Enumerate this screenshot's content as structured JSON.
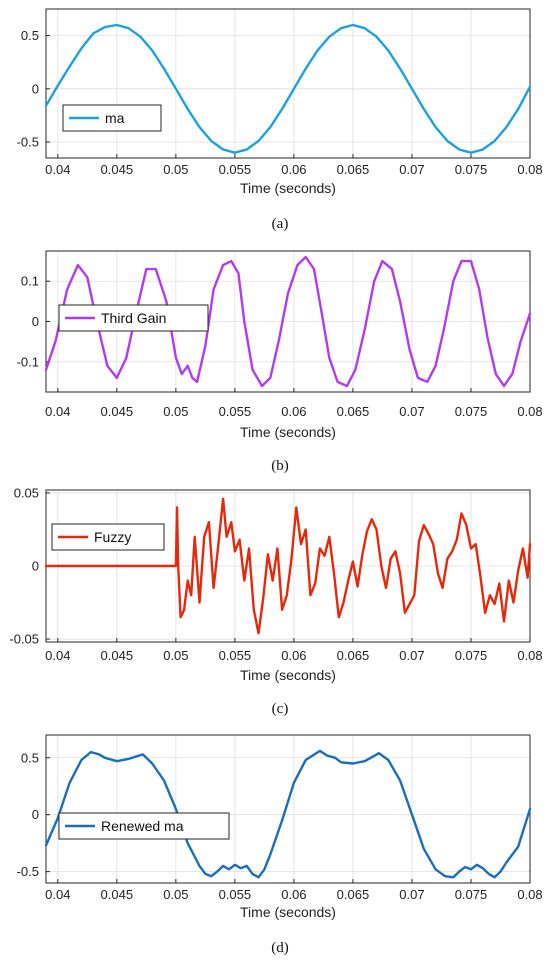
{
  "chart_data": [
    {
      "type": "line",
      "caption": "(a)",
      "xlabel": "Time (seconds)",
      "ylabel": "",
      "xlim": [
        0.039,
        0.08
      ],
      "ylim": [
        -0.65,
        0.75
      ],
      "xticks": [
        0.04,
        0.045,
        0.05,
        0.055,
        0.06,
        0.065,
        0.07,
        0.075,
        0.08
      ],
      "xtick_labels": [
        "0.04",
        "0.045",
        "0.05",
        "0.055",
        "0.06",
        "0.065",
        "0.07",
        "0.075",
        "0.08"
      ],
      "yticks": [
        0.5,
        0,
        -0.5
      ],
      "ytick_labels": [
        "0.5",
        "0",
        "-0.5"
      ],
      "grid": true,
      "legend_position": "left",
      "series": [
        {
          "name": "ma",
          "color": "#1ba1e2",
          "x": [
            0.039,
            0.04,
            0.041,
            0.042,
            0.043,
            0.044,
            0.045,
            0.046,
            0.047,
            0.048,
            0.049,
            0.05,
            0.051,
            0.052,
            0.053,
            0.054,
            0.055,
            0.056,
            0.057,
            0.058,
            0.059,
            0.06,
            0.061,
            0.062,
            0.063,
            0.064,
            0.065,
            0.066,
            0.067,
            0.068,
            0.069,
            0.07,
            0.071,
            0.072,
            0.073,
            0.074,
            0.075,
            0.076,
            0.077,
            0.078,
            0.079,
            0.08
          ],
          "y": [
            -0.16,
            0.03,
            0.21,
            0.38,
            0.52,
            0.58,
            0.6,
            0.57,
            0.49,
            0.36,
            0.19,
            0.0,
            -0.19,
            -0.36,
            -0.49,
            -0.57,
            -0.6,
            -0.57,
            -0.49,
            -0.36,
            -0.19,
            0.0,
            0.19,
            0.36,
            0.49,
            0.57,
            0.6,
            0.57,
            0.49,
            0.36,
            0.19,
            0.0,
            -0.19,
            -0.36,
            -0.49,
            -0.57,
            -0.6,
            -0.57,
            -0.49,
            -0.36,
            -0.19,
            0.02
          ]
        }
      ]
    },
    {
      "type": "line",
      "caption": "(b)",
      "xlabel": "Time (seconds)",
      "ylabel": "",
      "xlim": [
        0.039,
        0.08
      ],
      "ylim": [
        -0.175,
        0.175
      ],
      "xticks": [
        0.04,
        0.045,
        0.05,
        0.055,
        0.06,
        0.065,
        0.07,
        0.075,
        0.08
      ],
      "xtick_labels": [
        "0.04",
        "0.045",
        "0.05",
        "0.055",
        "0.06",
        "0.065",
        "0.07",
        "0.075",
        "0.08"
      ],
      "yticks": [
        0.1,
        0,
        -0.1
      ],
      "ytick_labels": [
        "0.1",
        "0",
        "-0.1"
      ],
      "grid": true,
      "legend_position": "left",
      "series": [
        {
          "name": "Third Gain",
          "color": "#b43af0",
          "x": [
            0.039,
            0.0398,
            0.0408,
            0.0417,
            0.0425,
            0.0433,
            0.0442,
            0.045,
            0.0458,
            0.0467,
            0.0475,
            0.0483,
            0.0492,
            0.05,
            0.0505,
            0.051,
            0.0514,
            0.0518,
            0.0525,
            0.0532,
            0.054,
            0.0547,
            0.0553,
            0.0558,
            0.0565,
            0.0573,
            0.058,
            0.0587,
            0.0595,
            0.0603,
            0.061,
            0.0617,
            0.0623,
            0.063,
            0.0637,
            0.0645,
            0.0652,
            0.066,
            0.0668,
            0.0675,
            0.0683,
            0.069,
            0.0698,
            0.0705,
            0.0713,
            0.072,
            0.0727,
            0.0735,
            0.0742,
            0.075,
            0.0757,
            0.0764,
            0.0771,
            0.0778,
            0.0785,
            0.0792,
            0.08
          ],
          "y": [
            -0.12,
            -0.05,
            0.08,
            0.14,
            0.11,
            0.0,
            -0.11,
            -0.14,
            -0.09,
            0.03,
            0.13,
            0.13,
            0.05,
            -0.09,
            -0.13,
            -0.11,
            -0.14,
            -0.15,
            -0.06,
            0.08,
            0.14,
            0.15,
            0.12,
            0.0,
            -0.12,
            -0.16,
            -0.14,
            -0.05,
            0.07,
            0.14,
            0.16,
            0.13,
            0.03,
            -0.09,
            -0.15,
            -0.16,
            -0.12,
            -0.02,
            0.1,
            0.15,
            0.13,
            0.05,
            -0.07,
            -0.14,
            -0.15,
            -0.11,
            -0.02,
            0.1,
            0.15,
            0.15,
            0.08,
            -0.04,
            -0.13,
            -0.16,
            -0.13,
            -0.05,
            0.02
          ]
        }
      ]
    },
    {
      "type": "line",
      "caption": "(c)",
      "xlabel": "Time (seconds)",
      "ylabel": "",
      "xlim": [
        0.039,
        0.08
      ],
      "ylim": [
        -0.052,
        0.052
      ],
      "xticks": [
        0.04,
        0.045,
        0.05,
        0.055,
        0.06,
        0.065,
        0.07,
        0.075,
        0.08
      ],
      "xtick_labels": [
        "0.04",
        "0.045",
        "0.05",
        "0.055",
        "0.06",
        "0.065",
        "0.07",
        "0.075",
        "0.08"
      ],
      "yticks": [
        0.05,
        0,
        -0.05
      ],
      "ytick_labels": [
        "0.05",
        "0",
        "-0.05"
      ],
      "grid": true,
      "legend_position": "left",
      "series": [
        {
          "name": "Fuzzy",
          "color": "#e8280a",
          "x": [
            0.039,
            0.05,
            0.0501,
            0.0502,
            0.0504,
            0.0507,
            0.051,
            0.0513,
            0.0516,
            0.052,
            0.0524,
            0.0528,
            0.0532,
            0.0536,
            0.054,
            0.0543,
            0.0547,
            0.055,
            0.0554,
            0.0558,
            0.0562,
            0.0566,
            0.057,
            0.0574,
            0.0578,
            0.0582,
            0.0586,
            0.059,
            0.0594,
            0.0598,
            0.0602,
            0.0606,
            0.061,
            0.0614,
            0.0618,
            0.0622,
            0.0626,
            0.063,
            0.0634,
            0.0638,
            0.0642,
            0.0646,
            0.065,
            0.0654,
            0.0658,
            0.0662,
            0.0666,
            0.067,
            0.0674,
            0.0678,
            0.0682,
            0.0686,
            0.069,
            0.0694,
            0.0698,
            0.0702,
            0.0706,
            0.071,
            0.0714,
            0.0718,
            0.0722,
            0.0726,
            0.073,
            0.0734,
            0.0738,
            0.0742,
            0.0746,
            0.075,
            0.0754,
            0.0758,
            0.0762,
            0.0766,
            0.077,
            0.0774,
            0.0778,
            0.0782,
            0.0786,
            0.079,
            0.0794,
            0.0798,
            0.08
          ],
          "y": [
            0.0,
            0.0,
            0.04,
            0.0,
            -0.035,
            -0.03,
            -0.01,
            -0.02,
            0.02,
            -0.025,
            0.02,
            0.03,
            -0.015,
            0.015,
            0.046,
            0.02,
            0.03,
            0.01,
            0.018,
            -0.01,
            0.012,
            -0.03,
            -0.046,
            -0.022,
            0.008,
            -0.01,
            0.012,
            -0.03,
            -0.02,
            0.005,
            0.04,
            0.015,
            0.025,
            -0.02,
            -0.012,
            0.012,
            0.007,
            0.02,
            -0.005,
            -0.035,
            -0.025,
            -0.01,
            0.003,
            -0.014,
            0.008,
            0.024,
            0.032,
            0.025,
            0.0,
            -0.015,
            0.005,
            0.01,
            -0.005,
            -0.032,
            -0.026,
            -0.02,
            0.017,
            0.028,
            0.022,
            0.015,
            -0.005,
            -0.015,
            0.005,
            0.01,
            0.018,
            0.036,
            0.028,
            0.012,
            0.015,
            -0.007,
            -0.032,
            -0.02,
            -0.026,
            -0.012,
            -0.038,
            -0.01,
            -0.025,
            -0.003,
            0.012,
            -0.008,
            0.015
          ]
        }
      ]
    },
    {
      "type": "line",
      "caption": "(d)",
      "xlabel": "Time (seconds)",
      "ylabel": "",
      "xlim": [
        0.039,
        0.08
      ],
      "ylim": [
        -0.6,
        0.7
      ],
      "xticks": [
        0.04,
        0.045,
        0.05,
        0.055,
        0.06,
        0.065,
        0.07,
        0.075,
        0.08
      ],
      "xtick_labels": [
        "0.04",
        "0.045",
        "0.05",
        "0.055",
        "0.06",
        "0.065",
        "0.07",
        "0.075",
        "0.08"
      ],
      "yticks": [
        0.5,
        0,
        -0.5
      ],
      "ytick_labels": [
        "0.5",
        "0",
        "-0.5"
      ],
      "grid": true,
      "legend_position": "left",
      "series": [
        {
          "name": "Renewed ma",
          "color": "#1a6ebc",
          "x": [
            0.039,
            0.04,
            0.041,
            0.042,
            0.0428,
            0.0435,
            0.044,
            0.045,
            0.046,
            0.0472,
            0.048,
            0.049,
            0.05,
            0.051,
            0.052,
            0.0525,
            0.053,
            0.0535,
            0.054,
            0.0545,
            0.055,
            0.0555,
            0.056,
            0.0565,
            0.057,
            0.0575,
            0.058,
            0.059,
            0.06,
            0.061,
            0.0622,
            0.0628,
            0.0635,
            0.064,
            0.065,
            0.066,
            0.0672,
            0.068,
            0.069,
            0.07,
            0.071,
            0.072,
            0.0728,
            0.0735,
            0.074,
            0.0745,
            0.075,
            0.0755,
            0.076,
            0.0765,
            0.077,
            0.0775,
            0.078,
            0.079,
            0.08
          ],
          "y": [
            -0.27,
            -0.03,
            0.28,
            0.48,
            0.55,
            0.53,
            0.5,
            0.47,
            0.49,
            0.53,
            0.45,
            0.3,
            0.05,
            -0.25,
            -0.45,
            -0.52,
            -0.54,
            -0.5,
            -0.45,
            -0.48,
            -0.44,
            -0.47,
            -0.45,
            -0.52,
            -0.55,
            -0.48,
            -0.35,
            -0.05,
            0.28,
            0.48,
            0.56,
            0.52,
            0.5,
            0.46,
            0.45,
            0.47,
            0.54,
            0.48,
            0.3,
            0.0,
            -0.3,
            -0.48,
            -0.54,
            -0.55,
            -0.5,
            -0.46,
            -0.48,
            -0.44,
            -0.47,
            -0.52,
            -0.55,
            -0.5,
            -0.42,
            -0.28,
            0.05
          ]
        }
      ]
    }
  ]
}
